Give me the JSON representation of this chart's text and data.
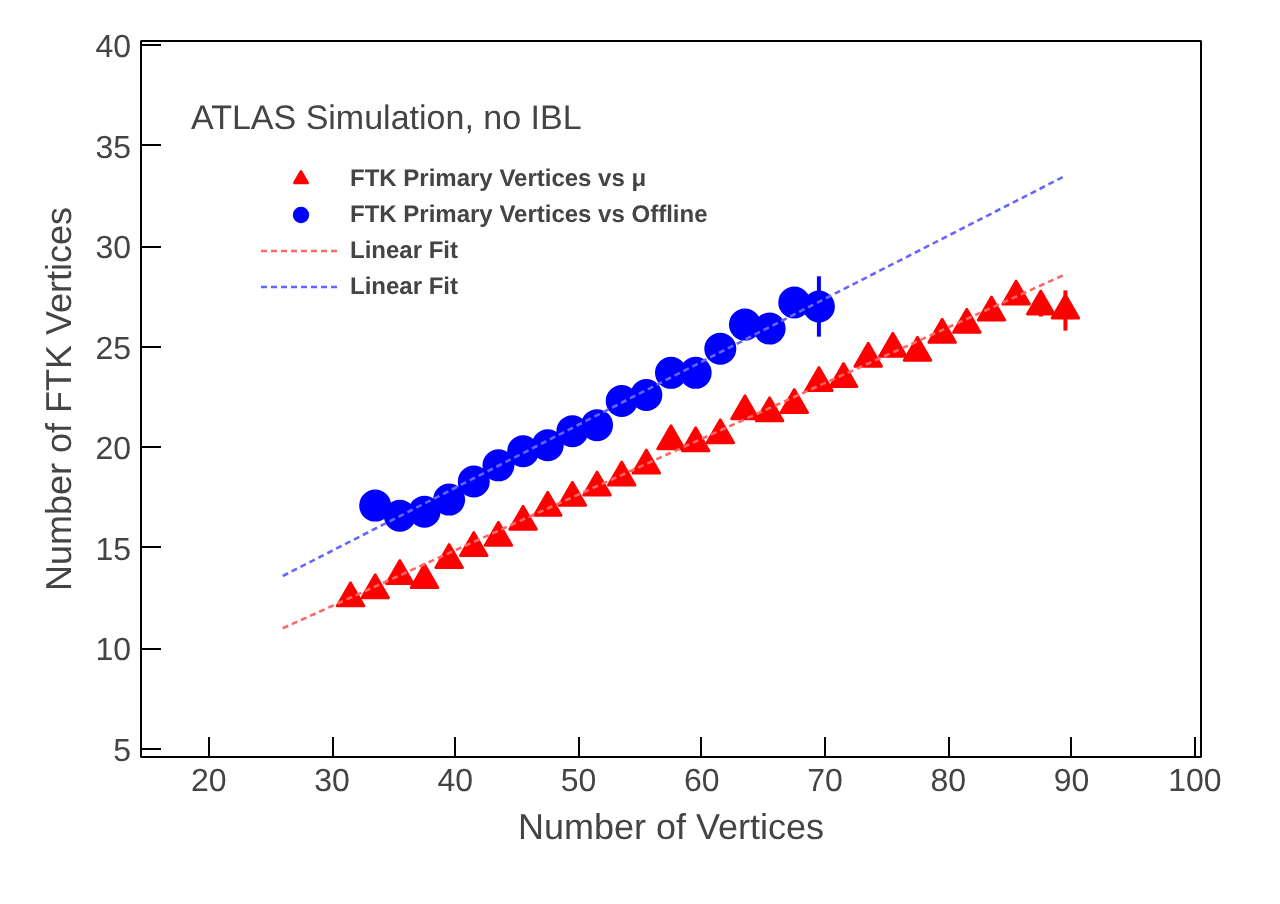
{
  "chart_data": {
    "type": "scatter",
    "xlabel": "Number of Vertices",
    "ylabel": "Number of FTK Vertices",
    "annotations": [
      "ATLAS Simulation, no IBL"
    ],
    "xlim": [
      14.5,
      100.5
    ],
    "xticks": [
      20,
      30,
      40,
      50,
      60,
      70,
      80,
      90,
      100
    ],
    "ylim": [
      4.6,
      40.2
    ],
    "yticks": [
      5,
      10,
      15,
      20,
      25,
      30,
      35,
      40
    ],
    "grid": false,
    "legend": "top left",
    "series": [
      {
        "name": "FTK Primary Vertices vs μ",
        "color": "#ff0000",
        "marker": "triangle",
        "x": [
          31.5,
          33.5,
          35.5,
          37.5,
          39.5,
          41.5,
          43.5,
          45.5,
          47.5,
          49.5,
          51.5,
          53.5,
          55.5,
          57.5,
          59.5,
          61.5,
          63.5,
          65.5,
          67.5,
          69.5,
          71.5,
          73.5,
          75.5,
          77.5,
          79.5,
          81.5,
          83.5,
          85.5,
          87.5,
          89.5
        ],
        "values": [
          12.5,
          12.9,
          13.6,
          13.4,
          14.4,
          15.0,
          15.5,
          16.3,
          17.0,
          17.5,
          18.0,
          18.5,
          19.1,
          20.3,
          20.2,
          20.6,
          21.8,
          21.7,
          22.1,
          23.2,
          23.4,
          24.4,
          24.9,
          24.7,
          25.6,
          26.1,
          26.7,
          27.5,
          27.0,
          26.8
        ],
        "errors": [
          null,
          null,
          null,
          null,
          null,
          null,
          null,
          null,
          null,
          null,
          null,
          null,
          null,
          null,
          null,
          null,
          null,
          null,
          null,
          null,
          null,
          null,
          null,
          null,
          null,
          null,
          null,
          0.4,
          0.5,
          1.0
        ]
      },
      {
        "name": "FTK Primary Vertices vs Offline",
        "color": "#0000ff",
        "marker": "circle",
        "x": [
          33.5,
          35.5,
          37.5,
          39.5,
          41.5,
          43.5,
          45.5,
          47.5,
          49.5,
          51.5,
          53.5,
          55.5,
          57.5,
          59.5,
          61.5,
          63.5,
          65.5,
          67.5,
          69.5
        ],
        "values": [
          17.1,
          16.6,
          16.8,
          17.4,
          18.3,
          19.1,
          19.8,
          20.1,
          20.8,
          21.1,
          22.3,
          22.6,
          23.7,
          23.7,
          24.9,
          26.1,
          25.9,
          27.2,
          27.0
        ],
        "errors": [
          null,
          null,
          null,
          null,
          null,
          null,
          null,
          null,
          null,
          null,
          null,
          null,
          null,
          null,
          null,
          null,
          null,
          null,
          1.5
        ]
      },
      {
        "name": "Linear Fit",
        "type": "line",
        "line_style": "dashed",
        "color": "#ff6666",
        "x": [
          26,
          89.5
        ],
        "values": [
          11.0,
          28.6
        ]
      },
      {
        "name": "Linear Fit",
        "type": "line",
        "line_style": "dashed",
        "color": "#6666ff",
        "x": [
          26,
          89.5
        ],
        "values": [
          13.6,
          33.5
        ]
      }
    ]
  }
}
